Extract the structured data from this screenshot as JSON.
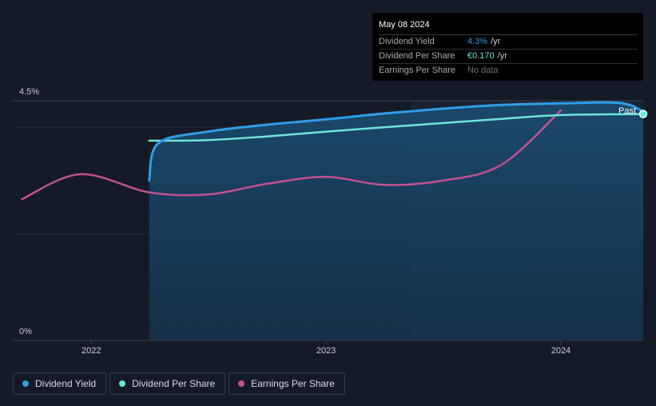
{
  "chart_data": {
    "type": "line",
    "x_ticks": [
      "2022",
      "2023",
      "2024"
    ],
    "y_ticks": [
      "0%",
      "4.5%"
    ],
    "ylim": [
      0,
      4.5
    ],
    "past_label": "Past",
    "series": [
      {
        "name": "Dividend Yield",
        "color": "#2f9de8",
        "x": [
          "2022-04-01",
          "2022-04-15",
          "2022-07-01",
          "2022-10-01",
          "2023-01-01",
          "2023-04-01",
          "2023-07-01",
          "2023-10-01",
          "2024-01-01",
          "2024-04-01",
          "2024-05-08"
        ],
        "values": [
          3.0,
          3.7,
          3.92,
          4.05,
          4.15,
          4.26,
          4.35,
          4.42,
          4.45,
          4.46,
          4.3
        ]
      },
      {
        "name": "Dividend Per Share",
        "color": "#6ce6d7",
        "x": [
          "2022-04-01",
          "2022-07-01",
          "2022-10-01",
          "2023-01-01",
          "2023-04-01",
          "2023-07-01",
          "2023-10-01",
          "2024-01-01",
          "2024-05-08"
        ],
        "values": [
          3.75,
          3.76,
          3.83,
          3.92,
          4.0,
          4.08,
          4.16,
          4.23,
          4.25
        ]
      },
      {
        "name": "Earnings Per Share",
        "color": "#c2528e",
        "x": [
          "2021-09-15",
          "2021-12-15",
          "2022-04-01",
          "2022-07-01",
          "2022-10-01",
          "2023-01-01",
          "2023-04-01",
          "2023-07-01",
          "2023-10-01",
          "2024-01-01"
        ],
        "values": [
          2.65,
          3.12,
          2.78,
          2.74,
          2.94,
          3.07,
          2.92,
          3.0,
          3.3,
          4.32
        ]
      }
    ],
    "legend_position": "bottom"
  },
  "tooltip": {
    "date": "May 08 2024",
    "rows": [
      {
        "label": "Dividend Yield",
        "value": "4.3%",
        "unit": "/yr"
      },
      {
        "label": "Dividend Per Share",
        "value": "€0.170",
        "unit": "/yr"
      },
      {
        "label": "Earnings Per Share",
        "value": "No data",
        "unit": ""
      }
    ]
  },
  "legend": [
    "Dividend Yield",
    "Dividend Per Share",
    "Earnings Per Share"
  ]
}
